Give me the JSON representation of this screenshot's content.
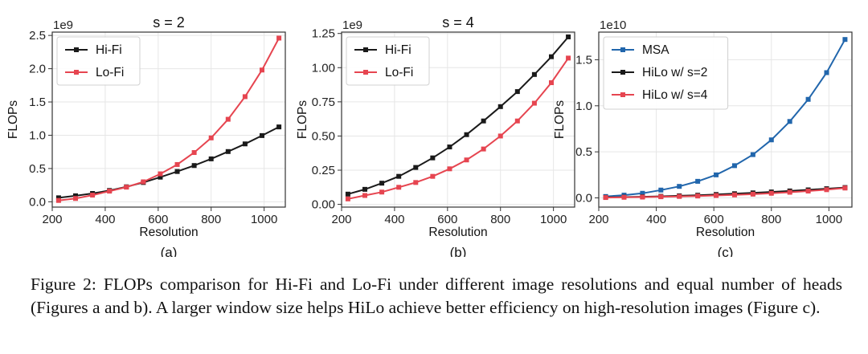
{
  "chart_data": [
    {
      "type": "line",
      "title": "s = 2",
      "panel_label": "(a)",
      "xlabel": "Resolution",
      "ylabel": "FLOPs",
      "y_scale_label": "1e9",
      "xlim": [
        200,
        1080
      ],
      "ylim": [
        -0.08,
        2.55
      ],
      "x_ticks": [
        200,
        400,
        600,
        800,
        1000
      ],
      "y_ticks": [
        0.0,
        0.5,
        1.0,
        1.5,
        2.0,
        2.5
      ],
      "y_tick_labels": [
        "0.0",
        "0.5",
        "1.0",
        "1.5",
        "2.0",
        "2.5"
      ],
      "grid": true,
      "legend_position": "top-left",
      "x": [
        224,
        288,
        352,
        416,
        480,
        544,
        608,
        672,
        736,
        800,
        864,
        928,
        992,
        1056
      ],
      "series": [
        {
          "name": "Hi-Fi",
          "color": "#1a1a1a",
          "values": [
            0.06,
            0.09,
            0.125,
            0.17,
            0.225,
            0.29,
            0.37,
            0.455,
            0.545,
            0.645,
            0.755,
            0.87,
            0.995,
            1.125
          ]
        },
        {
          "name": "Lo-Fi",
          "color": "#e64550",
          "values": [
            0.02,
            0.05,
            0.1,
            0.16,
            0.22,
            0.3,
            0.42,
            0.56,
            0.74,
            0.96,
            1.24,
            1.58,
            1.98,
            2.46
          ]
        }
      ]
    },
    {
      "type": "line",
      "title": "s = 4",
      "panel_label": "(b)",
      "xlabel": "Resolution",
      "ylabel": "FLOPs",
      "y_scale_label": "1e9",
      "xlim": [
        200,
        1080
      ],
      "ylim": [
        -0.02,
        1.26
      ],
      "x_ticks": [
        200,
        400,
        600,
        800,
        1000
      ],
      "y_ticks": [
        0.0,
        0.25,
        0.5,
        0.75,
        1.0,
        1.25
      ],
      "y_tick_labels": [
        "0.00",
        "0.25",
        "0.50",
        "0.75",
        "1.00",
        "1.25"
      ],
      "grid": true,
      "legend_position": "top-left",
      "x": [
        224,
        288,
        352,
        416,
        480,
        544,
        608,
        672,
        736,
        800,
        864,
        928,
        992,
        1056
      ],
      "series": [
        {
          "name": "Hi-Fi",
          "color": "#1a1a1a",
          "values": [
            0.075,
            0.11,
            0.155,
            0.205,
            0.27,
            0.34,
            0.42,
            0.51,
            0.61,
            0.715,
            0.825,
            0.95,
            1.08,
            1.225
          ]
        },
        {
          "name": "Lo-Fi",
          "color": "#e64550",
          "values": [
            0.04,
            0.065,
            0.09,
            0.125,
            0.16,
            0.205,
            0.26,
            0.325,
            0.405,
            0.5,
            0.61,
            0.74,
            0.89,
            1.07
          ]
        }
      ]
    },
    {
      "type": "line",
      "title": "",
      "panel_label": "(c)",
      "xlabel": "Resolution",
      "ylabel": "FLOPs",
      "y_scale_label": "1e10",
      "xlim": [
        200,
        1080
      ],
      "ylim": [
        -0.1,
        1.8
      ],
      "x_ticks": [
        200,
        400,
        600,
        800,
        1000
      ],
      "y_ticks": [
        0.0,
        0.5,
        1.0,
        1.5
      ],
      "y_tick_labels": [
        "0.0",
        "0.5",
        "1.0",
        "1.5"
      ],
      "grid": true,
      "legend_position": "top-left",
      "x": [
        224,
        288,
        352,
        416,
        480,
        544,
        608,
        672,
        736,
        800,
        864,
        928,
        992,
        1056
      ],
      "series": [
        {
          "name": "MSA",
          "color": "#2166ac",
          "values": [
            0.015,
            0.03,
            0.05,
            0.085,
            0.125,
            0.18,
            0.25,
            0.35,
            0.47,
            0.63,
            0.83,
            1.07,
            1.36,
            1.72
          ]
        },
        {
          "name": "HiLo w/ s=2",
          "color": "#1a1a1a",
          "values": [
            0.006,
            0.009,
            0.0125,
            0.017,
            0.0225,
            0.029,
            0.037,
            0.0455,
            0.0545,
            0.0645,
            0.0755,
            0.087,
            0.0995,
            0.1125
          ]
        },
        {
          "name": "HiLo w/ s=4",
          "color": "#e64550",
          "values": [
            0.004,
            0.0065,
            0.009,
            0.0125,
            0.016,
            0.0205,
            0.026,
            0.0325,
            0.0405,
            0.05,
            0.061,
            0.074,
            0.089,
            0.107
          ]
        }
      ]
    }
  ],
  "caption": "Figure 2: FLOPs comparison for Hi-Fi and Lo-Fi under different image resolutions and equal number of heads (Figures a and b). A larger window size helps HiLo achieve better efficiency on high-resolution images (Figure c)."
}
